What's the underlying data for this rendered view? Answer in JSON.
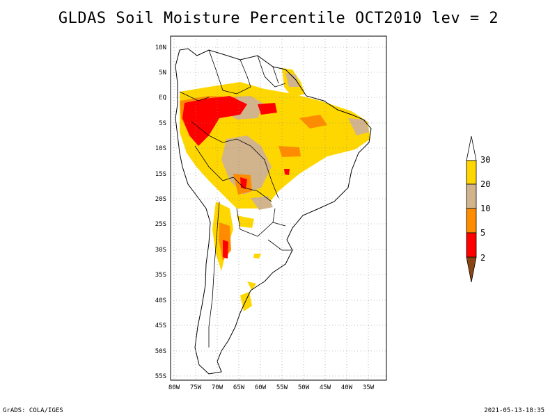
{
  "title": "GLDAS Soil Moisture Percentile OCT2010 lev = 2",
  "footer": {
    "left": "GrADS: COLA/IGES",
    "right": "2021-05-13-18:35"
  },
  "map": {
    "lat_labels": [
      "10N",
      "5N",
      "EQ",
      "5S",
      "10S",
      "15S",
      "20S",
      "25S",
      "30S",
      "35S",
      "40S",
      "45S",
      "50S",
      "55S"
    ],
    "lon_labels": [
      "80W",
      "75W",
      "70W",
      "65W",
      "60W",
      "55W",
      "50W",
      "45W",
      "40W",
      "35W"
    ],
    "grid": "dotted"
  },
  "legend": {
    "labels": [
      "30",
      "20",
      "10",
      "5",
      "2"
    ],
    "colors": [
      "#ffffff",
      "#ffd700",
      "#d2b48c",
      "#ff8c00",
      "#ff0000",
      "#8b4513"
    ]
  },
  "colors": {
    "yellow": "#ffd700",
    "tan": "#d2b48c",
    "orange": "#ff8c00",
    "red": "#ff0000",
    "brown": "#8b4513"
  }
}
